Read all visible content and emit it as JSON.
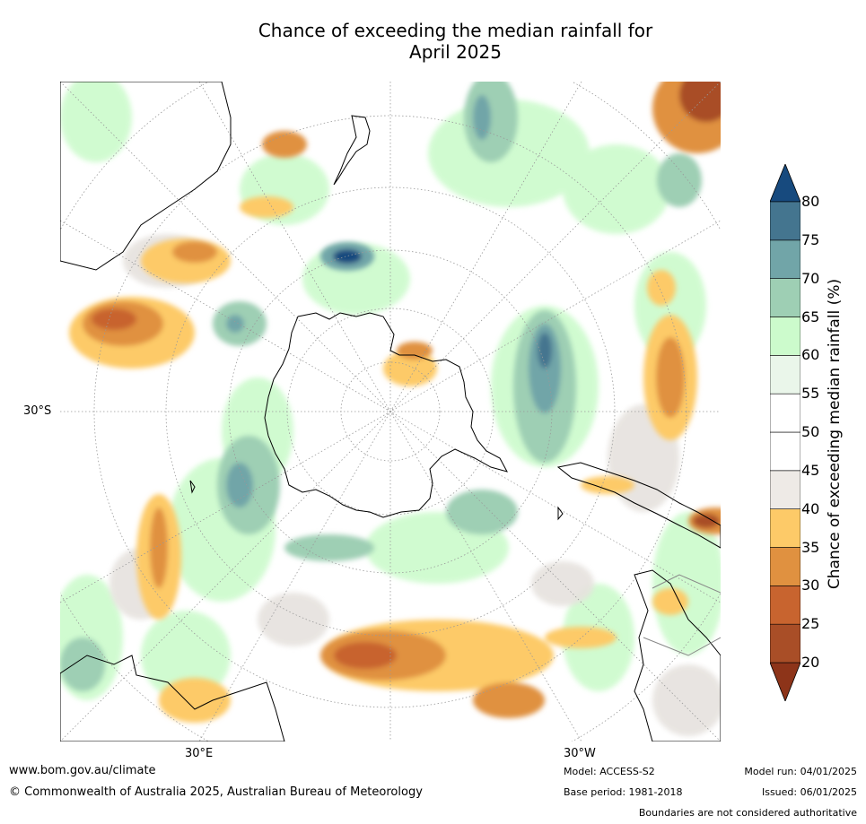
{
  "title_line1": "Chance of exceeding the median rainfall for",
  "title_line2": "April 2025",
  "map": {
    "labels": {
      "lat_left": "30°S",
      "lon_left": "30°E",
      "lon_right": "30°W"
    },
    "colors": {
      "ocean": "#ffffff",
      "land_outline": "#000000",
      "boundary": "#888888",
      "graticule": "#999999"
    }
  },
  "colorbar": {
    "title": "Chance of exceeding median rainfall (%)",
    "levels": [
      "20",
      "25",
      "30",
      "35",
      "40",
      "45",
      "50",
      "55",
      "60",
      "65",
      "70",
      "75",
      "80"
    ],
    "colors_bottom_to_top": [
      "#8d3419",
      "#a94e27",
      "#c8642f",
      "#e09140",
      "#fdca68",
      "#eeeae6",
      "#ffffff",
      "#ffffff",
      "#eaf6ea",
      "#ccfbcc",
      "#9ecfb4",
      "#71a5a8",
      "#44758f",
      "#174a7e"
    ]
  },
  "footer": {
    "url": "www.bom.gov.au/climate",
    "copyright": "© Commonwealth of Australia 2025, Australian Bureau of Meteorology",
    "model": "Model: ACCESS-S2",
    "base_period": "Base period: 1981-2018",
    "model_run": "Model run: 04/01/2025",
    "issued": "Issued: 06/01/2025",
    "disclaimer": "Boundaries are not considered authoritative"
  }
}
